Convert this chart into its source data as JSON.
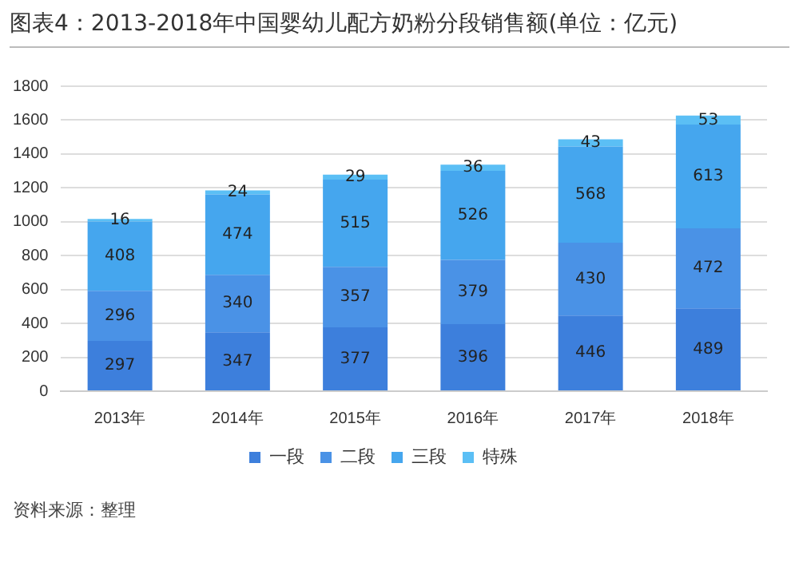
{
  "chart_data": {
    "type": "bar",
    "title": "图表4：2013-2018年中国婴幼儿配方奶粉分段销售额(单位：亿元)",
    "categories": [
      "2013年",
      "2014年",
      "2015年",
      "2016年",
      "2017年",
      "2018年"
    ],
    "series": [
      {
        "name": "一段",
        "color": "#3d7fdc",
        "values": [
          297,
          347,
          377,
          396,
          446,
          489
        ]
      },
      {
        "name": "二段",
        "color": "#4a92e6",
        "values": [
          296,
          340,
          357,
          379,
          430,
          472
        ]
      },
      {
        "name": "三段",
        "color": "#45a6ee",
        "values": [
          408,
          474,
          515,
          526,
          568,
          613
        ]
      },
      {
        "name": "特殊",
        "color": "#5bbff5",
        "values": [
          16,
          24,
          29,
          36,
          43,
          53
        ]
      }
    ],
    "stacked": true,
    "ylim": [
      0,
      1800
    ],
    "yticks": [
      0,
      200,
      400,
      600,
      800,
      1000,
      1200,
      1400,
      1600,
      1800
    ],
    "grid": "y",
    "legend": "bottom",
    "data_labels": true,
    "annotations": [
      "资料来源：整理"
    ]
  }
}
